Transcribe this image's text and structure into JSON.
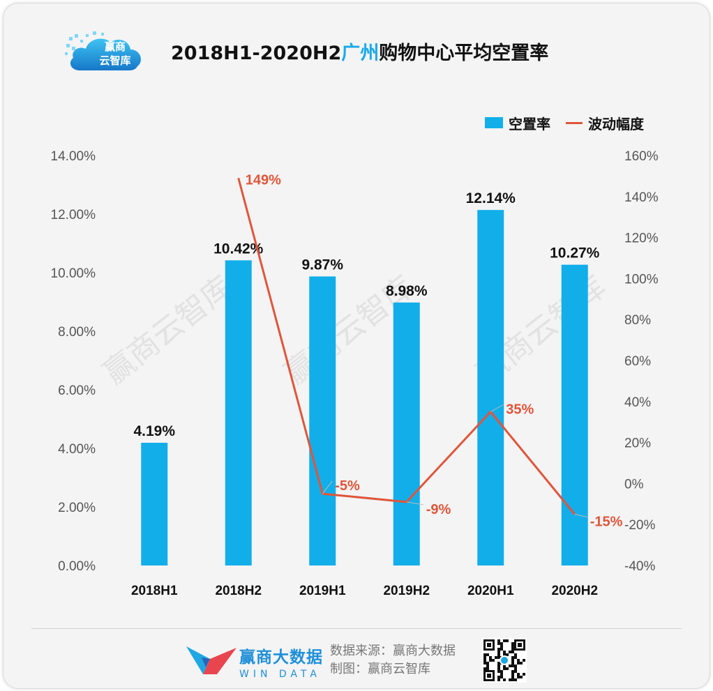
{
  "header": {
    "logo_text": "赢商\n云智库",
    "title_prefix": "2018H1-2020H2",
    "title_city": "广州",
    "title_suffix": "购物中心平均空置率"
  },
  "legend": {
    "placement": "top-right",
    "items": [
      "空置率",
      "波动幅度"
    ]
  },
  "watermark": "赢商云智库",
  "colors": {
    "bar": "#12aeea",
    "line": "#e0553a",
    "title_accent": "#1aa9e8"
  },
  "chart_data": {
    "type": "bar",
    "categories": [
      "2018H1",
      "2018H2",
      "2019H1",
      "2019H2",
      "2020H1",
      "2020H2"
    ],
    "series": [
      {
        "name": "空置率",
        "type": "bar",
        "axis": "left",
        "values": [
          4.19,
          10.42,
          9.87,
          8.98,
          12.14,
          10.27
        ],
        "labels": [
          "4.19%",
          "10.42%",
          "9.87%",
          "8.98%",
          "12.14%",
          "10.27%"
        ]
      },
      {
        "name": "波动幅度",
        "type": "line",
        "axis": "right",
        "values": [
          null,
          149,
          -5,
          -9,
          35,
          -15
        ],
        "labels": [
          "",
          "149%",
          "-5%",
          "-9%",
          "35%",
          "-15%"
        ]
      }
    ],
    "y_left": {
      "range": [
        0,
        14
      ],
      "ticks": [
        0,
        2,
        4,
        6,
        8,
        10,
        12,
        14
      ],
      "tick_labels": [
        "0.00%",
        "2.00%",
        "4.00%",
        "6.00%",
        "8.00%",
        "10.00%",
        "12.00%",
        "14.00%"
      ]
    },
    "y_right": {
      "range": [
        -40,
        160
      ],
      "ticks": [
        -40,
        -20,
        0,
        20,
        40,
        60,
        80,
        100,
        120,
        140,
        160
      ],
      "tick_labels": [
        "-40%",
        "-20%",
        "0%",
        "20%",
        "40%",
        "60%",
        "80%",
        "100%",
        "120%",
        "140%",
        "160%"
      ]
    },
    "grid": false
  },
  "footer": {
    "brand_cn": "赢商大数据",
    "brand_en": "WIN DATA",
    "source": "数据来源：赢商大数据",
    "made_by": "制图：赢商云智库"
  }
}
